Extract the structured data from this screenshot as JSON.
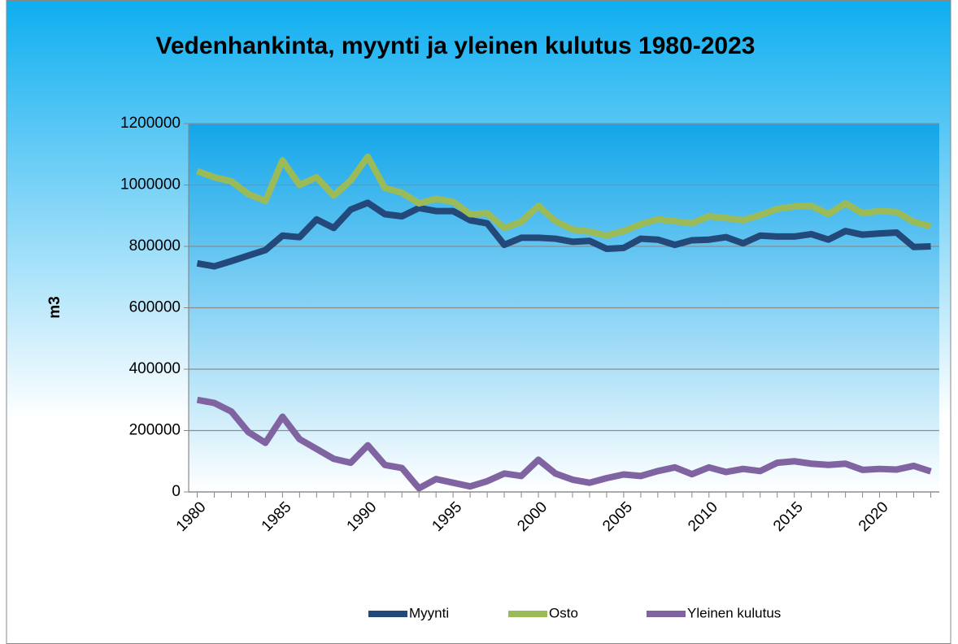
{
  "chart_data": {
    "type": "line",
    "title": "Vedenhankinta, myynti ja yleinen kulutus 1980-2023",
    "y_label": "m3",
    "x": [
      1980,
      1981,
      1982,
      1983,
      1984,
      1985,
      1986,
      1987,
      1988,
      1989,
      1990,
      1991,
      1992,
      1993,
      1994,
      1995,
      1996,
      1997,
      1998,
      1999,
      2000,
      2001,
      2002,
      2003,
      2004,
      2005,
      2006,
      2007,
      2008,
      2009,
      2010,
      2011,
      2012,
      2013,
      2014,
      2015,
      2016,
      2017,
      2018,
      2019,
      2020,
      2021,
      2022,
      2023
    ],
    "xlim": [
      1979.5,
      2023.5
    ],
    "xticks": [
      1980,
      1985,
      1990,
      1995,
      2000,
      2005,
      2010,
      2015,
      2020
    ],
    "ylim": [
      0,
      1200000
    ],
    "yticks": [
      0,
      200000,
      400000,
      600000,
      800000,
      1000000,
      1200000
    ],
    "grid": true,
    "legend": "bottom",
    "series": [
      {
        "name": "Myynti",
        "color": "#23497a",
        "values": [
          745000,
          735000,
          752000,
          770000,
          788000,
          835000,
          830000,
          888000,
          860000,
          920000,
          942000,
          905000,
          898000,
          925000,
          915000,
          915000,
          885000,
          875000,
          805000,
          828000,
          828000,
          825000,
          815000,
          818000,
          792000,
          795000,
          825000,
          822000,
          805000,
          820000,
          822000,
          830000,
          810000,
          835000,
          832000,
          832000,
          840000,
          822000,
          850000,
          838000,
          842000,
          845000,
          798000,
          800000
        ]
      },
      {
        "name": "Osto",
        "color": "#9bbb59",
        "values": [
          1045000,
          1025000,
          1012000,
          970000,
          948000,
          1080000,
          1000000,
          1025000,
          965000,
          1015000,
          1092000,
          990000,
          975000,
          940000,
          955000,
          945000,
          905000,
          908000,
          860000,
          880000,
          932000,
          882000,
          855000,
          848000,
          835000,
          850000,
          872000,
          888000,
          882000,
          875000,
          898000,
          892000,
          885000,
          902000,
          922000,
          930000,
          932000,
          905000,
          940000,
          908000,
          915000,
          912000,
          880000,
          865000
        ]
      },
      {
        "name": "Yleinen kulutus",
        "color": "#8064a2",
        "values": [
          300000,
          290000,
          262000,
          195000,
          160000,
          245000,
          172000,
          140000,
          108000,
          95000,
          152000,
          88000,
          78000,
          12000,
          42000,
          30000,
          18000,
          35000,
          60000,
          52000,
          105000,
          60000,
          40000,
          30000,
          45000,
          57000,
          52000,
          68000,
          80000,
          58000,
          80000,
          65000,
          75000,
          68000,
          95000,
          100000,
          92000,
          88000,
          92000,
          72000,
          75000,
          73000,
          85000,
          67000
        ]
      }
    ]
  }
}
